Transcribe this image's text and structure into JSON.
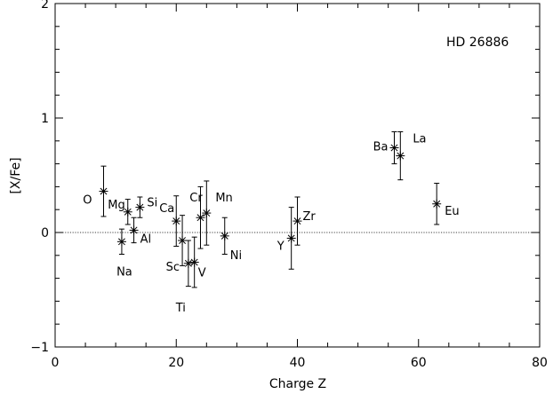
{
  "chart_data": {
    "type": "scatter",
    "title": "HD 26886",
    "xlabel": "Charge Z",
    "ylabel": "[X/Fe]",
    "xlim": [
      0,
      80
    ],
    "ylim": [
      -1.0,
      2.0
    ],
    "xticks": [
      0,
      20,
      40,
      60,
      80
    ],
    "yticks": [
      -1,
      0,
      1,
      2
    ],
    "xtick_labels": [
      "0",
      "20",
      "40",
      "60",
      "80"
    ],
    "ytick_labels": [
      "−1",
      "0",
      "1",
      "2"
    ],
    "reference_line": {
      "y": 0,
      "style": "dotted"
    },
    "grid": false,
    "points": [
      {
        "label": "O",
        "z": 8,
        "value": 0.36,
        "err": 0.22
      },
      {
        "label": "Na",
        "z": 11,
        "value": -0.08,
        "err": 0.11
      },
      {
        "label": "Mg",
        "z": 12,
        "value": 0.18,
        "err": 0.11
      },
      {
        "label": "Al",
        "z": 13,
        "value": 0.02,
        "err": 0.11
      },
      {
        "label": "Si",
        "z": 14,
        "value": 0.22,
        "err": 0.09
      },
      {
        "label": "Ca",
        "z": 20,
        "value": 0.1,
        "err": 0.22
      },
      {
        "label": "Sc",
        "z": 21,
        "value": -0.07,
        "err": 0.22
      },
      {
        "label": "Ti",
        "z": 22,
        "value": -0.27,
        "err": 0.2
      },
      {
        "label": "V",
        "z": 23,
        "value": -0.26,
        "err": 0.22
      },
      {
        "label": "Cr",
        "z": 24,
        "value": 0.13,
        "err": 0.27
      },
      {
        "label": "Mn",
        "z": 25,
        "value": 0.17,
        "err": 0.28
      },
      {
        "label": "Ni",
        "z": 28,
        "value": -0.03,
        "err": 0.16
      },
      {
        "label": "Y",
        "z": 39,
        "value": -0.05,
        "err": 0.27
      },
      {
        "label": "Zr",
        "z": 40,
        "value": 0.1,
        "err": 0.21
      },
      {
        "label": "Ba",
        "z": 56,
        "value": 0.74,
        "err": 0.14
      },
      {
        "label": "La",
        "z": 57,
        "value": 0.67,
        "err": 0.21
      },
      {
        "label": "Eu",
        "z": 63,
        "value": 0.25,
        "err": 0.18
      }
    ]
  }
}
